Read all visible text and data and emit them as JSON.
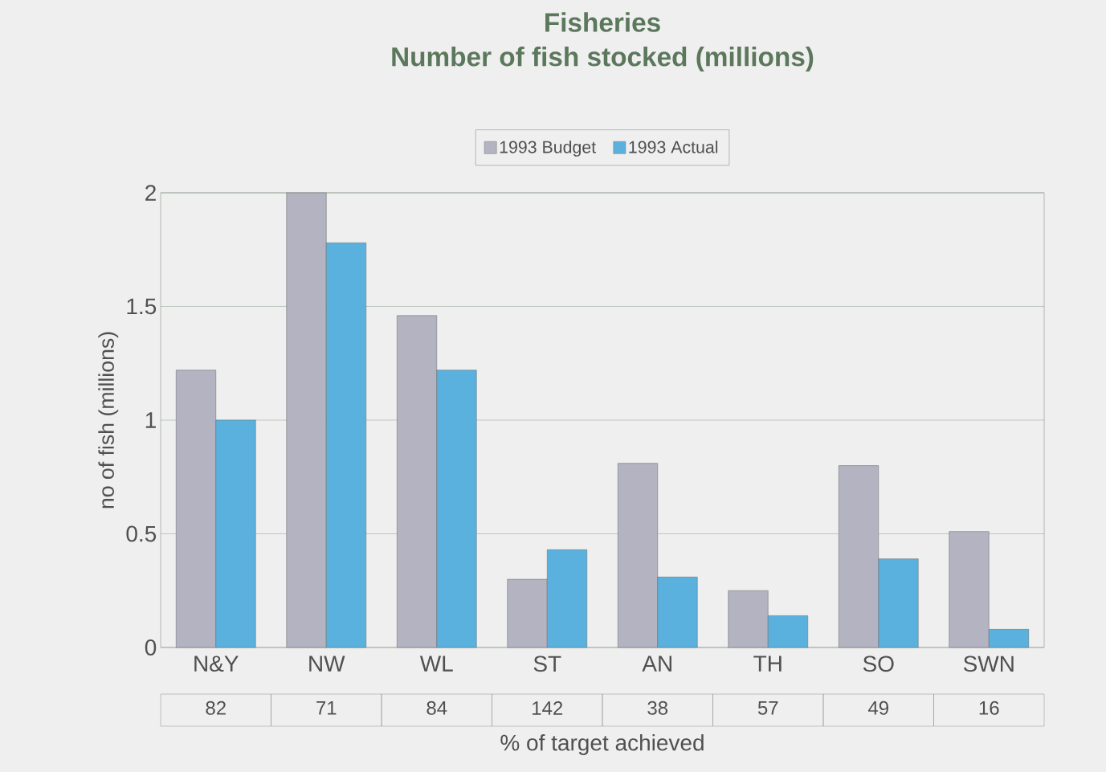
{
  "chart_data": {
    "type": "bar",
    "title": "Fisheries",
    "subtitle": "Number of fish stocked (millions)",
    "ylabel": "no of fish (millions)",
    "xlabel": "% of target achieved",
    "categories": [
      "N&Y",
      "NW",
      "WL",
      "ST",
      "AN",
      "TH",
      "SO",
      "SWN"
    ],
    "series": [
      {
        "name": "1993 Budget",
        "color": "#b4b3c2",
        "values": [
          1.22,
          2.0,
          1.46,
          0.3,
          0.81,
          0.25,
          0.8,
          0.51
        ]
      },
      {
        "name": "1993 Actual",
        "color": "#5ab1de",
        "values": [
          1.0,
          1.78,
          1.22,
          0.43,
          0.31,
          0.14,
          0.39,
          0.08
        ]
      }
    ],
    "annotations": [
      "82",
      "71",
      "84",
      "142",
      "38",
      "57",
      "49",
      "16"
    ],
    "ylim": [
      0,
      2
    ],
    "yticks": [
      0,
      0.5,
      1,
      1.5,
      2
    ],
    "grid": "y",
    "legend": "top"
  }
}
